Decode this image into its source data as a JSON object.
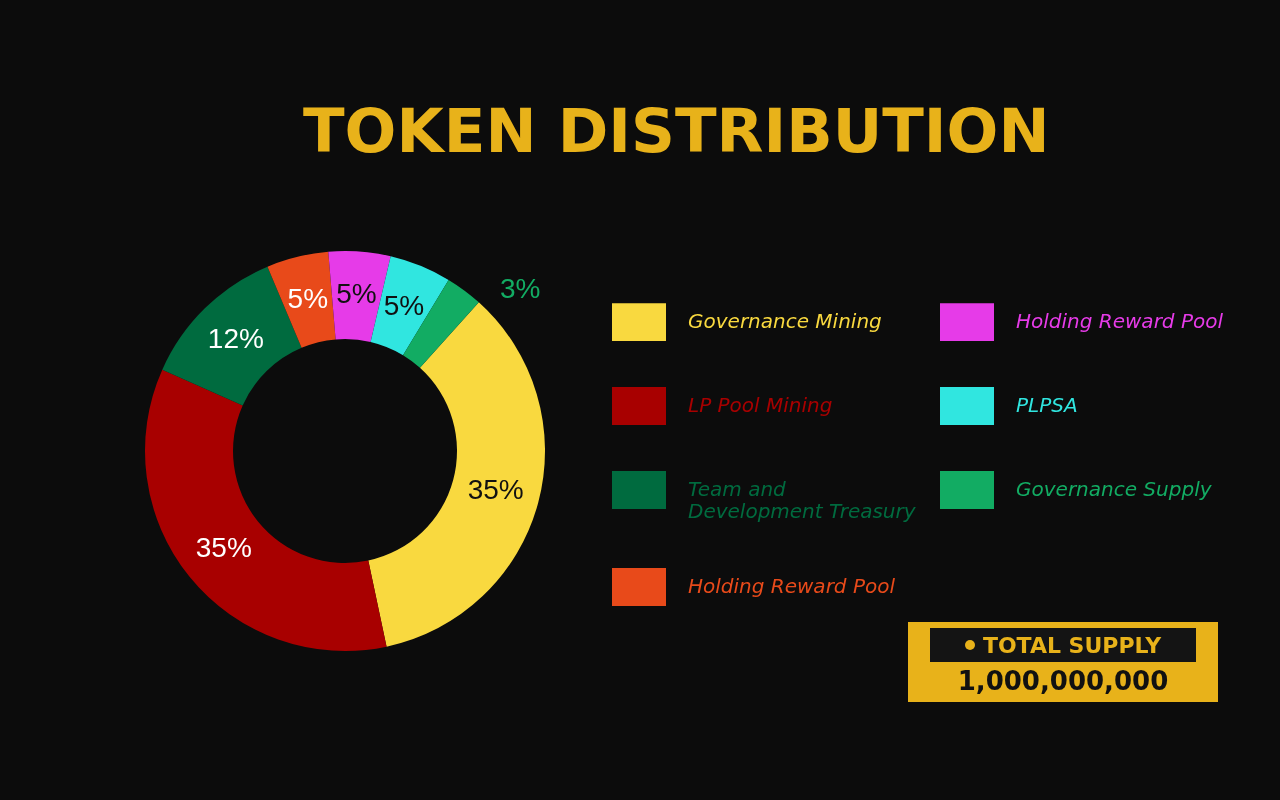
{
  "chart_data": {
    "type": "donut",
    "title": "TOKEN DISTRIBUTION",
    "categories": [
      "Governance Mining",
      "LP Pool Mining",
      "Team and Development Treasury",
      "Holding Reward Pool",
      "Holding Reward Pool",
      "PLPSA",
      "Governance Supply"
    ],
    "values": [
      35,
      35,
      12,
      5,
      5,
      5,
      3
    ],
    "colors": [
      "#f9d93f",
      "#a80000",
      "#006b3f",
      "#e84a1a",
      "#e63be8",
      "#30e6e0",
      "#12ac63"
    ],
    "value_labels": [
      "35%",
      "35%",
      "12%",
      "5%",
      "5%",
      "5%",
      "3%"
    ],
    "legend": "right",
    "annotations": [
      "TOTAL SUPPLY",
      "1,000,000,000"
    ]
  }
}
